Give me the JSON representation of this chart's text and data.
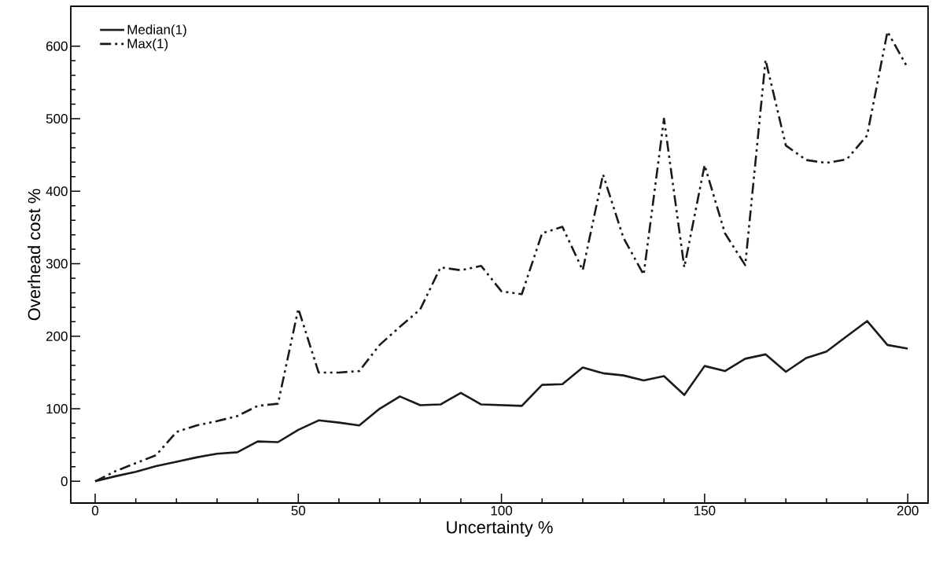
{
  "chart_data": {
    "type": "line",
    "xlabel": "Uncertainty %",
    "ylabel": "Overhead cost %",
    "x": [
      0,
      5,
      10,
      15,
      20,
      25,
      30,
      35,
      40,
      45,
      50,
      55,
      60,
      65,
      70,
      75,
      80,
      85,
      90,
      95,
      100,
      105,
      110,
      115,
      120,
      125,
      130,
      135,
      140,
      145,
      150,
      155,
      160,
      165,
      170,
      175,
      180,
      185,
      190,
      195,
      200
    ],
    "series": [
      {
        "name": "Median(1)",
        "color": "#1a1a1a",
        "line_style": "solid",
        "values": [
          0,
          7,
          13,
          21,
          27,
          33,
          38,
          40,
          55,
          54,
          71,
          84,
          81,
          77,
          100,
          117,
          105,
          106,
          122,
          106,
          105,
          104,
          133,
          134,
          157,
          149,
          146,
          139,
          145,
          119,
          159,
          152,
          169,
          175,
          151,
          170,
          179,
          200,
          221,
          188,
          183
        ]
      },
      {
        "name": "Max(1)",
        "color": "#1a1a1a",
        "line_style": "dashdotdotted",
        "values": [
          0,
          14,
          25,
          36,
          68,
          77,
          83,
          90,
          104,
          107,
          238,
          150,
          150,
          152,
          188,
          213,
          237,
          295,
          291,
          297,
          262,
          258,
          342,
          351,
          291,
          423,
          336,
          285,
          500,
          295,
          436,
          342,
          298,
          581,
          463,
          443,
          439,
          444,
          477,
          620,
          570
        ]
      }
    ],
    "xlim": [
      -6,
      205
    ],
    "ylim": [
      -30,
      655
    ],
    "xticks": [
      0,
      50,
      100,
      150,
      200
    ],
    "yticks": [
      0,
      100,
      200,
      300,
      400,
      500,
      600
    ],
    "grid": false,
    "legend": "top left",
    "marker": "none"
  }
}
